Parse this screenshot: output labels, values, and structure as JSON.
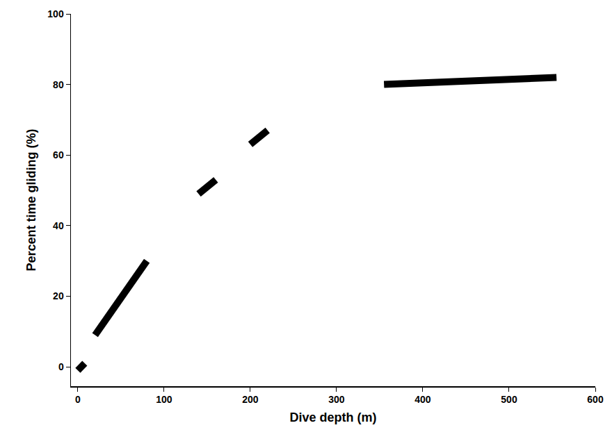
{
  "chart_data": {
    "type": "line",
    "xlabel": "Dive depth (m)",
    "ylabel": "Percent time gliding (%)",
    "xlim": [
      -8,
      600
    ],
    "ylim": [
      -5.5,
      100
    ],
    "xticks": [
      0,
      100,
      200,
      300,
      400,
      500,
      600
    ],
    "yticks": [
      0,
      20,
      40,
      60,
      80,
      100
    ],
    "grid": false,
    "color": "#000000",
    "series": [
      {
        "x": [
          0,
          8
        ],
        "values": [
          -1,
          1
        ]
      },
      {
        "x": [
          20,
          80
        ],
        "values": [
          9,
          30
        ]
      },
      {
        "x": [
          140,
          160
        ],
        "values": [
          49,
          53
        ]
      },
      {
        "x": [
          200,
          220
        ],
        "values": [
          63,
          67
        ]
      },
      {
        "x": [
          355,
          555
        ],
        "values": [
          80,
          82
        ]
      }
    ]
  }
}
